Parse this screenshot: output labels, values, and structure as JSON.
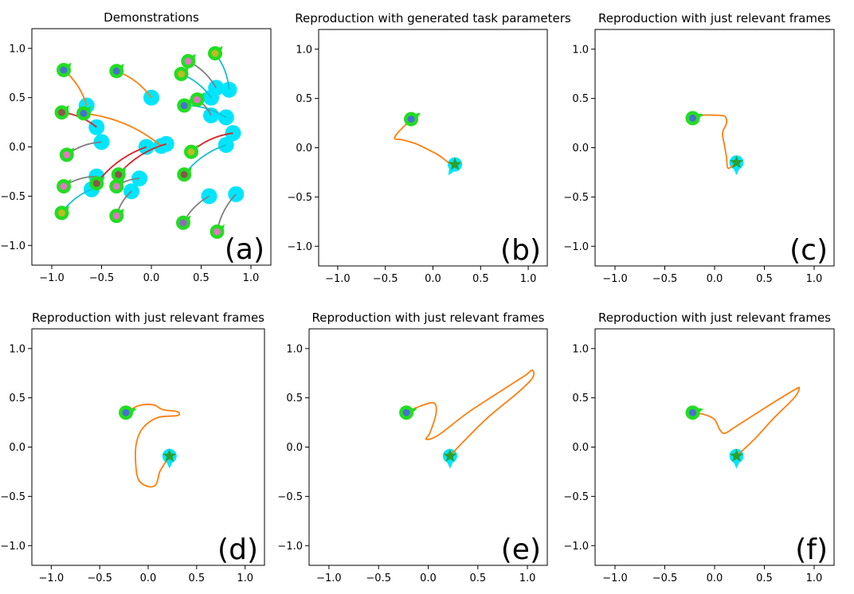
{
  "figure": {
    "background": "#ffffff"
  },
  "colors": {
    "orange": "#ff7f0e",
    "cyan": "#00e5ff",
    "cyan_line": "#17becf",
    "green": "#22dd22",
    "green_dark": "#2ca02c",
    "blue": "#4a6fd4",
    "pink": "#e377c2",
    "gray": "#7f7f7f",
    "red": "#d62728",
    "olive": "#bcbd22",
    "brown": "#8c564b",
    "purple": "#9467bd"
  },
  "chart_data": [
    {
      "type": "line",
      "title": "Demonstrations",
      "label": "(a)",
      "xlim": [
        -1.2,
        1.2
      ],
      "ylim": [
        -1.2,
        1.2
      ],
      "xticks": [
        -1.0,
        -0.5,
        0.0,
        0.5,
        1.0
      ],
      "yticks": [
        1.0,
        0.5,
        0.0,
        -0.5,
        -1.0
      ],
      "tick_labels": [
        "−1.0",
        "−0.5",
        "0.0",
        "0.5",
        "1.0"
      ],
      "ytick_labels": [
        "1.0",
        "0.5",
        "0.0",
        "−0.5",
        "−1.0"
      ],
      "grid": false,
      "demos": [
        {
          "start": [
            -0.88,
            0.78
          ],
          "end": [
            -0.65,
            0.42
          ],
          "start_color": "blue",
          "line": "orange"
        },
        {
          "start": [
            -0.35,
            0.77
          ],
          "end": [
            0.0,
            0.5
          ],
          "start_color": "blue",
          "line": "orange"
        },
        {
          "start": [
            -0.9,
            0.35
          ],
          "end": [
            -0.55,
            0.2
          ],
          "start_color": "brown",
          "line": "red"
        },
        {
          "start": [
            -0.68,
            0.34
          ],
          "end": [
            0.1,
            0.01
          ],
          "start_color": "blue",
          "line": "orange"
        },
        {
          "start": [
            -0.85,
            -0.08
          ],
          "end": [
            -0.5,
            0.05
          ],
          "start_color": "pink",
          "line": "gray"
        },
        {
          "start": [
            -0.88,
            -0.4
          ],
          "end": [
            -0.55,
            -0.3
          ],
          "start_color": "pink",
          "line": "gray"
        },
        {
          "start": [
            -0.9,
            -0.67
          ],
          "end": [
            -0.6,
            -0.43
          ],
          "start_color": "olive",
          "line": "cyan_line"
        },
        {
          "start": [
            -0.55,
            -0.37
          ],
          "end": [
            -0.05,
            0.0
          ],
          "start_color": "brown",
          "line": "red"
        },
        {
          "start": [
            -0.33,
            -0.28
          ],
          "end": [
            0.15,
            0.03
          ],
          "start_color": "brown",
          "line": "red"
        },
        {
          "start": [
            -0.35,
            -0.4
          ],
          "end": [
            -0.12,
            -0.32
          ],
          "start_color": "pink",
          "line": "gray"
        },
        {
          "start": [
            -0.35,
            -0.7
          ],
          "end": [
            -0.2,
            -0.45
          ],
          "start_color": "pink",
          "line": "gray"
        },
        {
          "start": [
            0.37,
            0.87
          ],
          "end": [
            0.65,
            0.6
          ],
          "start_color": "pink",
          "line": "gray"
        },
        {
          "start": [
            0.64,
            0.95
          ],
          "end": [
            0.78,
            0.58
          ],
          "start_color": "olive",
          "line": "cyan_line"
        },
        {
          "start": [
            0.3,
            0.74
          ],
          "end": [
            0.6,
            0.5
          ],
          "start_color": "olive",
          "line": "cyan_line"
        },
        {
          "start": [
            0.33,
            0.42
          ],
          "end": [
            0.75,
            0.3
          ],
          "start_color": "blue",
          "line": "cyan_line"
        },
        {
          "start": [
            0.46,
            0.48
          ],
          "end": [
            0.6,
            0.32
          ],
          "start_color": "pink",
          "line": "gray"
        },
        {
          "start": [
            0.4,
            -0.05
          ],
          "end": [
            0.82,
            0.14
          ],
          "start_color": "olive",
          "line": "red"
        },
        {
          "start": [
            0.33,
            -0.28
          ],
          "end": [
            0.75,
            0.02
          ],
          "start_color": "brown",
          "line": "cyan_line"
        },
        {
          "start": [
            0.32,
            -0.77
          ],
          "end": [
            0.58,
            -0.5
          ],
          "start_color": "purple",
          "line": "gray"
        },
        {
          "start": [
            0.66,
            -0.86
          ],
          "end": [
            0.85,
            -0.48
          ],
          "start_color": "pink",
          "line": "gray"
        }
      ]
    },
    {
      "type": "line",
      "title": "Reproduction with generated task parameters",
      "label": "(b)",
      "xlim": [
        -1.2,
        1.2
      ],
      "ylim": [
        -1.2,
        1.2
      ],
      "xticks": [
        -1.0,
        -0.5,
        0.0,
        0.5,
        1.0
      ],
      "yticks": [
        1.0,
        0.5,
        0.0,
        -0.5,
        -1.0
      ],
      "tick_labels": [
        "−1.0",
        "−0.5",
        "0.0",
        "0.5",
        "1.0"
      ],
      "ytick_labels": [
        "1.0",
        "0.5",
        "0.0",
        "−0.5",
        "−1.0"
      ],
      "grid": false,
      "start": [
        -0.23,
        0.29
      ],
      "start_heading": [
        1,
        0.8
      ],
      "goal": [
        0.23,
        -0.17
      ],
      "goal_heading": [
        -0.6,
        -1
      ],
      "path": [
        [
          -0.23,
          0.29
        ],
        [
          -0.3,
          0.22
        ],
        [
          -0.38,
          0.14
        ],
        [
          -0.4,
          0.09
        ],
        [
          -0.32,
          0.08
        ],
        [
          -0.18,
          0.04
        ],
        [
          -0.05,
          -0.02
        ],
        [
          0.05,
          -0.07
        ],
        [
          0.12,
          -0.12
        ],
        [
          0.18,
          -0.16
        ],
        [
          0.23,
          -0.17
        ]
      ]
    },
    {
      "type": "line",
      "title": "Reproduction with just relevant frames",
      "label": "(c)",
      "xlim": [
        -1.2,
        1.2
      ],
      "ylim": [
        -1.2,
        1.2
      ],
      "xticks": [
        -1.0,
        -0.5,
        0.0,
        0.5,
        1.0
      ],
      "yticks": [
        1.0,
        0.5,
        0.0,
        -0.5,
        -1.0
      ],
      "tick_labels": [
        "−1.0",
        "−0.5",
        "0.0",
        "0.5",
        "1.0"
      ],
      "ytick_labels": [
        "1.0",
        "0.5",
        "0.0",
        "−0.5",
        "−1.0"
      ],
      "grid": false,
      "start": [
        -0.22,
        0.3
      ],
      "start_heading": [
        1,
        0.3
      ],
      "goal": [
        0.22,
        -0.15
      ],
      "goal_heading": [
        0,
        -1
      ],
      "path": [
        [
          -0.22,
          0.3
        ],
        [
          -0.12,
          0.33
        ],
        [
          0.0,
          0.33
        ],
        [
          0.1,
          0.32
        ],
        [
          0.12,
          0.25
        ],
        [
          0.08,
          0.15
        ],
        [
          0.1,
          0.02
        ],
        [
          0.12,
          -0.1
        ],
        [
          0.13,
          -0.2
        ],
        [
          0.16,
          -0.2
        ],
        [
          0.22,
          -0.15
        ]
      ]
    },
    {
      "type": "line",
      "title": "Reproduction with just relevant frames",
      "label": "(d)",
      "xlim": [
        -1.2,
        1.2
      ],
      "ylim": [
        -1.2,
        1.2
      ],
      "xticks": [
        -1.0,
        -0.5,
        0.0,
        0.5,
        1.0
      ],
      "yticks": [
        1.0,
        0.5,
        0.0,
        -0.5,
        -1.0
      ],
      "tick_labels": [
        "−1.0",
        "−0.5",
        "0.0",
        "0.5",
        "1.0"
      ],
      "ytick_labels": [
        "1.0",
        "0.5",
        "0.0",
        "−0.5",
        "−1.0"
      ],
      "grid": false,
      "start": [
        -0.23,
        0.35
      ],
      "start_heading": [
        1,
        0.3
      ],
      "goal": [
        0.22,
        -0.09
      ],
      "goal_heading": [
        0,
        -1
      ],
      "path": [
        [
          -0.23,
          0.35
        ],
        [
          -0.1,
          0.42
        ],
        [
          0.05,
          0.43
        ],
        [
          0.15,
          0.38
        ],
        [
          0.3,
          0.36
        ],
        [
          0.3,
          0.32
        ],
        [
          0.1,
          0.3
        ],
        [
          -0.05,
          0.2
        ],
        [
          -0.12,
          0.05
        ],
        [
          -0.13,
          -0.15
        ],
        [
          -0.1,
          -0.33
        ],
        [
          0.0,
          -0.4
        ],
        [
          0.08,
          -0.38
        ],
        [
          0.12,
          -0.25
        ],
        [
          0.18,
          -0.15
        ],
        [
          0.22,
          -0.09
        ]
      ]
    },
    {
      "type": "line",
      "title": "Reproduction with just relevant frames",
      "label": "(e)",
      "xlim": [
        -1.2,
        1.2
      ],
      "ylim": [
        -1.2,
        1.2
      ],
      "xticks": [
        -1.0,
        -0.5,
        0.0,
        0.5,
        1.0
      ],
      "yticks": [
        1.0,
        0.5,
        0.0,
        -0.5,
        -1.0
      ],
      "tick_labels": [
        "−1.0",
        "−0.5",
        "0.0",
        "0.5",
        "1.0"
      ],
      "ytick_labels": [
        "1.0",
        "0.5",
        "0.0",
        "−0.5",
        "−1.0"
      ],
      "grid": false,
      "start": [
        -0.22,
        0.35
      ],
      "start_heading": [
        1,
        0.3
      ],
      "goal": [
        0.22,
        -0.09
      ],
      "goal_heading": [
        0,
        -1
      ],
      "path": [
        [
          -0.22,
          0.35
        ],
        [
          -0.12,
          0.4
        ],
        [
          0.05,
          0.45
        ],
        [
          0.08,
          0.35
        ],
        [
          0.02,
          0.15
        ],
        [
          -0.02,
          0.08
        ],
        [
          0.1,
          0.12
        ],
        [
          0.4,
          0.35
        ],
        [
          0.75,
          0.58
        ],
        [
          0.98,
          0.73
        ],
        [
          1.05,
          0.78
        ],
        [
          1.05,
          0.7
        ],
        [
          0.9,
          0.55
        ],
        [
          0.6,
          0.3
        ],
        [
          0.35,
          0.05
        ],
        [
          0.22,
          -0.09
        ]
      ]
    },
    {
      "type": "line",
      "title": "Reproduction with just relevant frames",
      "label": "(f)",
      "xlim": [
        -1.2,
        1.2
      ],
      "ylim": [
        -1.2,
        1.2
      ],
      "xticks": [
        -1.0,
        -0.5,
        0.0,
        0.5,
        1.0
      ],
      "yticks": [
        1.0,
        0.5,
        0.0,
        -0.5,
        -1.0
      ],
      "tick_labels": [
        "−1.0",
        "−0.5",
        "0.0",
        "0.5",
        "1.0"
      ],
      "ytick_labels": [
        "1.0",
        "0.5",
        "0.0",
        "−0.5",
        "−1.0"
      ],
      "grid": false,
      "start": [
        -0.22,
        0.35
      ],
      "start_heading": [
        1,
        0.3
      ],
      "goal": [
        0.22,
        -0.09
      ],
      "goal_heading": [
        0,
        -1
      ],
      "path": [
        [
          -0.22,
          0.35
        ],
        [
          -0.1,
          0.33
        ],
        [
          0.0,
          0.28
        ],
        [
          0.05,
          0.18
        ],
        [
          0.1,
          0.14
        ],
        [
          0.2,
          0.2
        ],
        [
          0.4,
          0.33
        ],
        [
          0.62,
          0.47
        ],
        [
          0.8,
          0.58
        ],
        [
          0.85,
          0.6
        ],
        [
          0.8,
          0.5
        ],
        [
          0.6,
          0.3
        ],
        [
          0.4,
          0.08
        ],
        [
          0.22,
          -0.09
        ]
      ]
    }
  ]
}
